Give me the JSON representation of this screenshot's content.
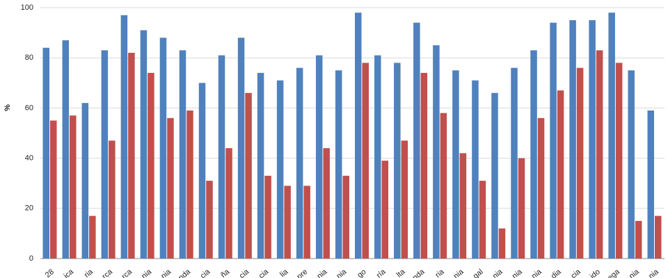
{
  "chart_data": {
    "type": "bar",
    "y_label": "%",
    "categories": [
      "28",
      "ica",
      "ria",
      "rca",
      "rca",
      "nia",
      "nia",
      "nda",
      "cia",
      "ña",
      "cia",
      "cia",
      "lia",
      "pre",
      "nia",
      "nia",
      "go",
      "ría",
      "lta",
      "nda",
      "ria",
      "nia",
      "gal",
      "nia",
      "nia",
      "nia",
      "dia",
      "cia",
      "ido",
      "ega",
      "nia",
      "nia"
    ],
    "series": [
      {
        "color": "#4f81bd",
        "values": [
          84,
          87,
          62,
          83,
          97,
          91,
          88,
          83,
          70,
          81,
          88,
          74,
          71,
          76,
          81,
          75,
          98,
          81,
          78,
          94,
          85,
          75,
          71,
          66,
          76,
          83,
          94,
          95,
          95,
          98,
          75,
          59
        ]
      },
      {
        "color": "#c0504d",
        "values": [
          55,
          57,
          17,
          47,
          82,
          74,
          56,
          59,
          31,
          44,
          66,
          33,
          29,
          29,
          44,
          33,
          78,
          39,
          47,
          74,
          58,
          42,
          31,
          12,
          40,
          56,
          67,
          76,
          83,
          78,
          15,
          17
        ]
      }
    ],
    "ylim": [
      0,
      100
    ],
    "yticks": [
      0,
      20,
      40,
      60,
      80,
      100
    ],
    "grid": true
  }
}
